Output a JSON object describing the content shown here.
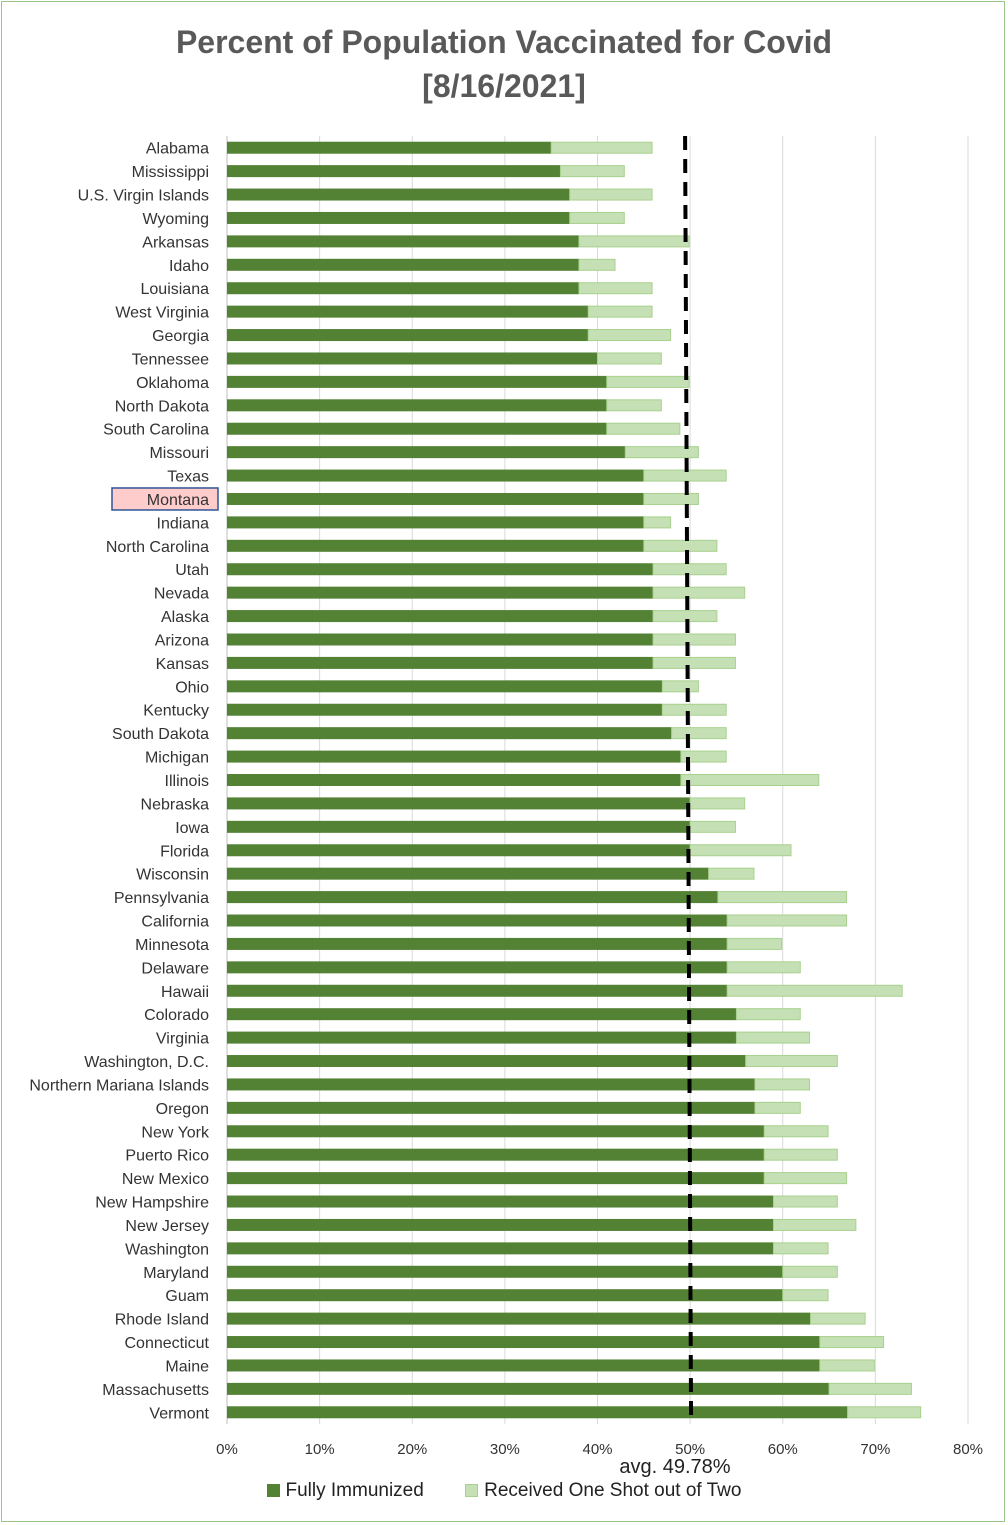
{
  "chart_data": {
    "type": "bar",
    "orientation": "horizontal",
    "stacked": true,
    "title": "Percent of Population Vaccinated for Covid",
    "subtitle": "[8/16/2021]",
    "categories": [
      "Alabama",
      "Mississippi",
      "U.S. Virgin Islands",
      "Wyoming",
      "Arkansas",
      "Idaho",
      "Louisiana",
      "West Virginia",
      "Georgia",
      "Tennessee",
      "Oklahoma",
      "North Dakota",
      "South Carolina",
      "Missouri",
      "Texas",
      "Montana",
      "Indiana",
      "North Carolina",
      "Utah",
      "Nevada",
      "Alaska",
      "Arizona",
      "Kansas",
      "Ohio",
      "Kentucky",
      "South Dakota",
      "Michigan",
      "Illinois",
      "Nebraska",
      "Iowa",
      "Florida",
      "Wisconsin",
      "Pennsylvania",
      "California",
      "Minnesota",
      "Delaware",
      "Hawaii",
      "Colorado",
      "Virginia",
      "Washington, D.C.",
      "Northern Mariana Islands",
      "Oregon",
      "New York",
      "Puerto Rico",
      "New Mexico",
      "New Hampshire",
      "New Jersey",
      "Washington",
      "Maryland",
      "Guam",
      "Rhode Island",
      "Connecticut",
      "Maine",
      "Massachusetts",
      "Vermont"
    ],
    "series": [
      {
        "name": "Fully Immunized",
        "color": "#548235",
        "values": [
          35,
          36,
          37,
          37,
          38,
          38,
          38,
          39,
          39,
          40,
          41,
          41,
          41,
          43,
          45,
          45,
          45,
          45,
          46,
          46,
          46,
          46,
          46,
          47,
          47,
          48,
          49,
          49,
          50,
          50,
          50,
          52,
          53,
          54,
          54,
          54,
          54,
          55,
          55,
          56,
          57,
          57,
          58,
          58,
          58,
          59,
          59,
          59,
          60,
          60,
          63,
          64,
          64,
          65,
          67
        ]
      },
      {
        "name": "Received One Shot out of Two",
        "color": "#c5e0b4",
        "values": [
          11,
          7,
          9,
          6,
          12,
          4,
          8,
          7,
          9,
          7,
          9,
          6,
          8,
          8,
          9,
          6,
          3,
          8,
          8,
          10,
          7,
          9,
          9,
          4,
          7,
          6,
          5,
          15,
          6,
          5,
          11,
          5,
          14,
          13,
          6,
          8,
          19,
          7,
          8,
          10,
          6,
          5,
          7,
          8,
          9,
          7,
          9,
          6,
          6,
          5,
          6,
          7,
          6,
          9,
          8
        ]
      }
    ],
    "xlim": [
      0,
      80
    ],
    "x_ticks": [
      "0%",
      "10%",
      "20%",
      "30%",
      "40%",
      "50%",
      "60%",
      "70%",
      "80%"
    ],
    "average": 49.78,
    "average_label": "avg. 49.78%",
    "highlighted_category": "Montana",
    "highlight_color": "#ffcccc",
    "grid": true,
    "legend_position": "bottom"
  },
  "legend": {
    "full_label": "Fully Immunized",
    "one_label": "Received One Shot out of Two"
  }
}
